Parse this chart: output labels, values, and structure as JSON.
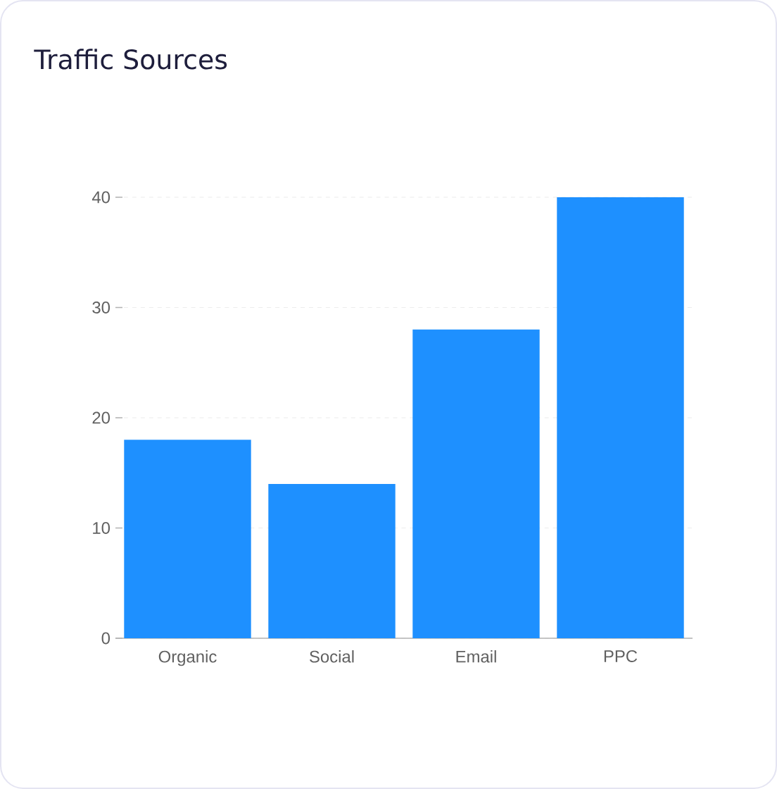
{
  "chart_data": {
    "type": "bar",
    "title": "Traffic Sources",
    "categories": [
      "Organic",
      "Social",
      "Email",
      "PPC"
    ],
    "values": [
      18,
      14,
      28,
      40
    ],
    "color": "#1e90ff",
    "ylim": [
      0,
      40
    ],
    "yticks": [
      0,
      10,
      20,
      30,
      40
    ],
    "grid": "y"
  }
}
